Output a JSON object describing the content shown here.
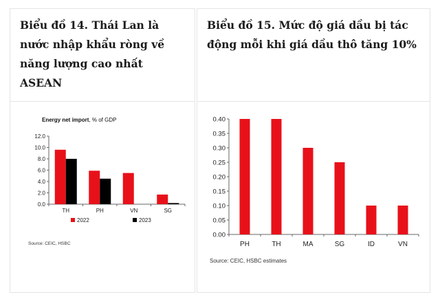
{
  "left_panel": {
    "title": "Biểu đồ 14. Thái Lan là nước nhập khẩu ròng về năng lượng cao nhất ASEAN",
    "chart_title_bold": "Energy net import",
    "chart_title_rest": ", % of GDP",
    "source": "Source: CEIC, HSBC"
  },
  "right_panel": {
    "title": "Biểu đồ 15. Mức độ giá dầu bị tác động mỗi khi giá dầu thô tăng 10%",
    "source": "Source: CEIC, HSBC estimates"
  },
  "chart_data": [
    {
      "type": "bar",
      "title": "Energy net import, % of GDP",
      "categories": [
        "TH",
        "PH",
        "VN",
        "SG"
      ],
      "series": [
        {
          "name": "2022",
          "color": "#e8111a",
          "values": [
            9.6,
            5.9,
            5.5,
            1.7
          ]
        },
        {
          "name": "2023",
          "color": "#000000",
          "values": [
            8.0,
            4.5,
            null,
            0.2
          ]
        }
      ],
      "ylim": [
        0,
        12
      ],
      "yticks": [
        "12.0",
        "10.0",
        "8.0",
        "6.0",
        "4.0",
        "2.0",
        "0.0"
      ],
      "grid": false,
      "legend": "bottom"
    },
    {
      "type": "bar",
      "title": "",
      "categories": [
        "PH",
        "TH",
        "MA",
        "SG",
        "ID",
        "VN"
      ],
      "series": [
        {
          "color": "#e8111a",
          "values": [
            0.4,
            0.4,
            0.3,
            0.25,
            0.1,
            0.1
          ]
        }
      ],
      "ylim": [
        0,
        0.4
      ],
      "yticks": [
        "0.40",
        "0.35",
        "0.30",
        "0.25",
        "0.20",
        "0.15",
        "0.10",
        "0.05",
        "0.00"
      ],
      "grid": false,
      "legend": "none"
    }
  ]
}
